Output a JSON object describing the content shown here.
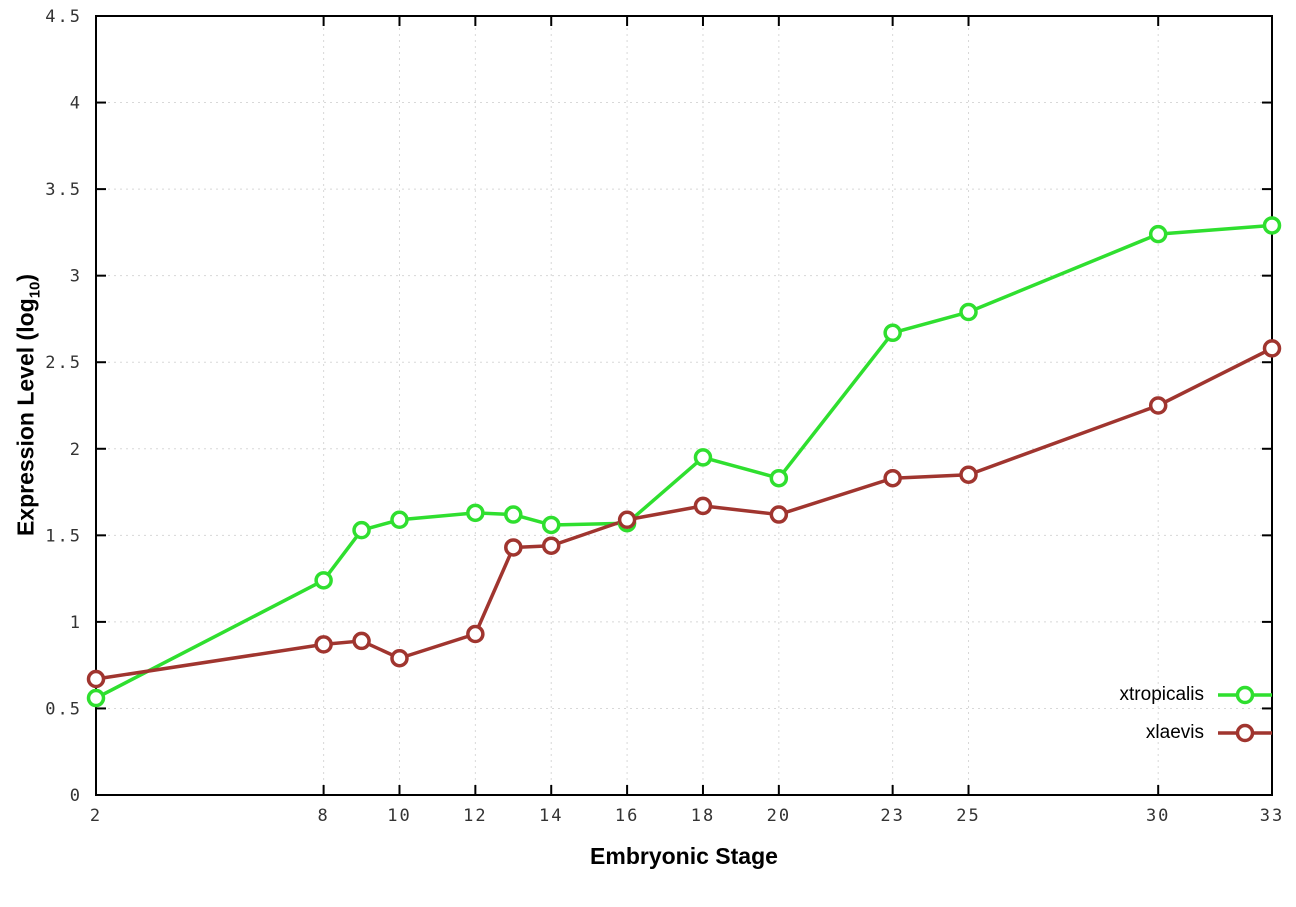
{
  "chart_data": {
    "type": "line",
    "x": [
      2,
      8,
      9,
      10,
      12,
      13,
      14,
      16,
      18,
      20,
      23,
      25,
      30,
      33
    ],
    "series": [
      {
        "name": "xtropicalis",
        "color": "#2fdf2f",
        "values": [
          0.56,
          1.24,
          1.53,
          1.59,
          1.63,
          1.62,
          1.56,
          1.57,
          1.95,
          1.83,
          2.67,
          2.79,
          3.24,
          3.29
        ]
      },
      {
        "name": "xlaevis",
        "color": "#a0352f",
        "values": [
          0.67,
          0.87,
          0.89,
          0.79,
          0.93,
          1.43,
          1.44,
          1.59,
          1.67,
          1.62,
          1.83,
          1.85,
          2.25,
          2.58
        ]
      }
    ],
    "title": "",
    "xlabel": "Embryonic Stage",
    "ylabel": "Expression Level (log10)",
    "ylabel_parts": {
      "main": "Expression Level (log",
      "sub": "10",
      "close": ")"
    },
    "xlim": [
      2,
      33
    ],
    "ylim": [
      0,
      4.5
    ],
    "x_tick_values": [
      2,
      8,
      10,
      12,
      14,
      16,
      18,
      20,
      23,
      25,
      30,
      33
    ],
    "x_tick_labels": [
      "2",
      "8",
      "10",
      "12",
      "14",
      "16",
      "18",
      "20",
      "23",
      "25",
      "30",
      "33"
    ],
    "y_tick_values": [
      0,
      0.5,
      1,
      1.5,
      2,
      2.5,
      3,
      3.5,
      4,
      4.5
    ],
    "y_tick_labels": [
      "0",
      "0.5",
      "1",
      "1.5",
      "2",
      "2.5",
      "3",
      "3.5",
      "4",
      "4.5"
    ],
    "grid": true,
    "legend_position": "inside-bottom-right",
    "marker": "open-circle",
    "line_width": 3.5,
    "colors": {
      "border": "#000000",
      "grid": "#d8d8d8",
      "tick_label": "#333333"
    }
  }
}
